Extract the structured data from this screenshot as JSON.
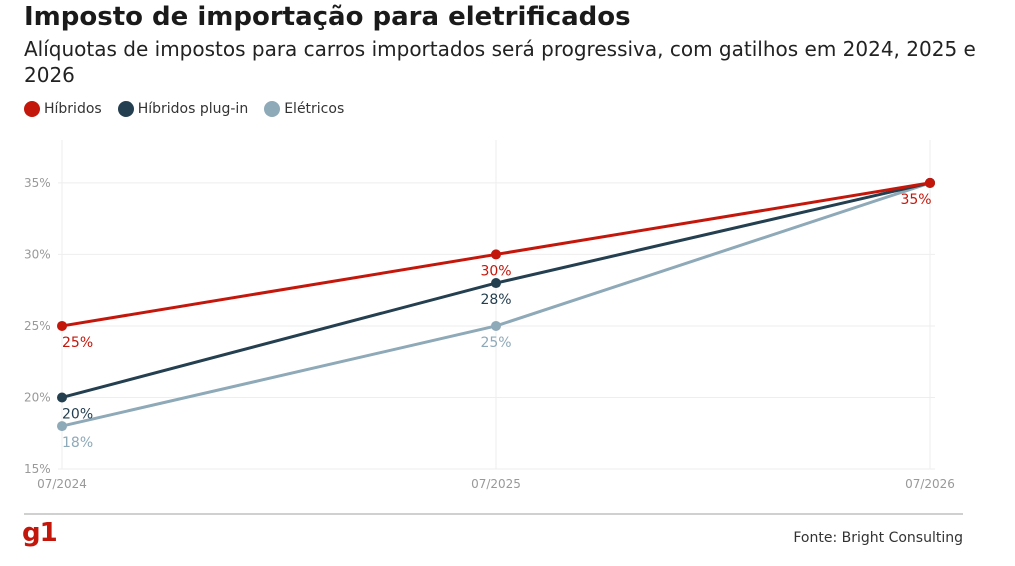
{
  "chart_data": {
    "type": "line",
    "title": "Imposto de importação para eletrificados",
    "subtitle": "Alíquotas de impostos para carros importados será progressiva, com gatilhos em 2024, 2025 e 2026",
    "categories": [
      "07/2024",
      "07/2025",
      "07/2026"
    ],
    "series": [
      {
        "name": "Híbridos",
        "color": "#c4170c",
        "values": [
          25,
          30,
          35
        ],
        "labels": [
          "25%",
          "30%",
          "35%"
        ]
      },
      {
        "name": "Híbridos plug-in",
        "color": "#243f4f",
        "values": [
          20,
          28,
          35
        ],
        "labels": [
          "20%",
          "28%",
          ""
        ]
      },
      {
        "name": "Elétricos",
        "color": "#8ea9b8",
        "values": [
          18,
          25,
          35
        ],
        "labels": [
          "18%",
          "25%",
          ""
        ]
      }
    ],
    "ylim": [
      15,
      38
    ],
    "yticks": [
      15,
      20,
      25,
      30,
      35
    ],
    "ytick_labels": [
      "15%",
      "20%",
      "25%",
      "30%",
      "35%"
    ],
    "xlabel": "",
    "ylabel": "",
    "grid": true,
    "legend": "top-left"
  },
  "footer": {
    "logo": "g1",
    "source": "Fonte: Bright Consulting"
  }
}
